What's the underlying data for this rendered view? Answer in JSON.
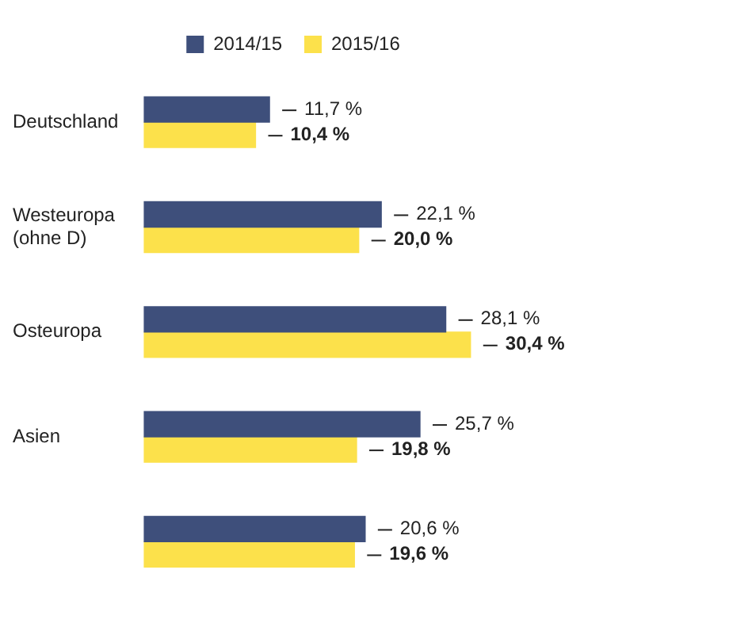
{
  "chart_data": {
    "type": "bar",
    "orientation": "horizontal",
    "categories": [
      "Deutschland",
      "Westeuropa (ohne D)",
      "Osteuropa",
      "Asien",
      null
    ],
    "series": [
      {
        "name": "2014/15",
        "color": "#3e4f7b",
        "values": [
          11.7,
          22.1,
          28.1,
          25.7,
          20.6
        ],
        "value_labels": [
          "11,7 %",
          "22,1 %",
          "28,1 %",
          "25,7 %",
          "20,6 %"
        ]
      },
      {
        "name": "2015/16",
        "color": "#fce14b",
        "values": [
          10.4,
          20.0,
          30.4,
          19.8,
          19.6
        ],
        "value_labels": [
          "10,4 %",
          "20,0 %",
          "30,4 %",
          "19,8 %",
          "19,6 %"
        ]
      }
    ],
    "legend": "top",
    "tick_labels": "y"
  }
}
